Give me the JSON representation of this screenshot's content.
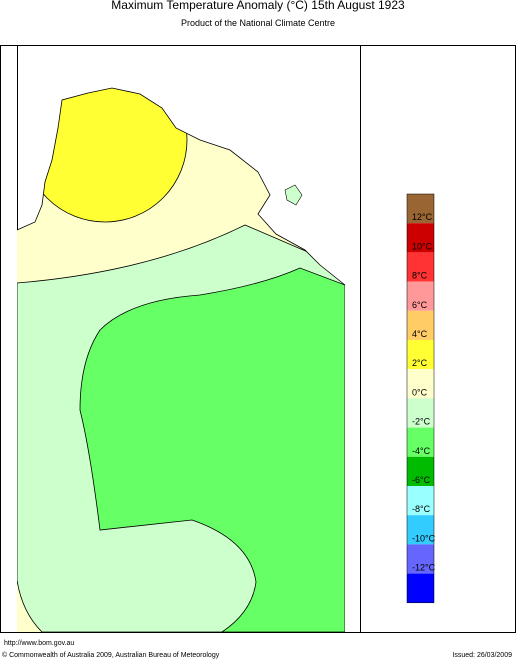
{
  "header": {
    "title": "Maximum Temperature Anomaly (°C)  15th August 1923",
    "subtitle": "Product of the National Climate Centre"
  },
  "legend": {
    "colors": [
      "#996633",
      "#cc0000",
      "#ff3333",
      "#ff9999",
      "#ffcc66",
      "#ffff33",
      "#ffffcc",
      "#ccffcc",
      "#66ff66",
      "#00bb00",
      "#99ffff",
      "#33ccff",
      "#6666ff",
      "#0000ff"
    ],
    "labels": [
      "12°C",
      "10°C",
      "8°C",
      "6°C",
      "4°C",
      "2°C",
      "0°C",
      "-2°C",
      "-4°C",
      "-6°C",
      "-8°C",
      "-10°C",
      "-12°C"
    ]
  },
  "footer": {
    "url": "http://www.bom.gov.au",
    "copyright": "© Commonwealth of Australia 2009, Australian Bureau of Meteorology",
    "issued": "Issued: 26/03/2009"
  }
}
